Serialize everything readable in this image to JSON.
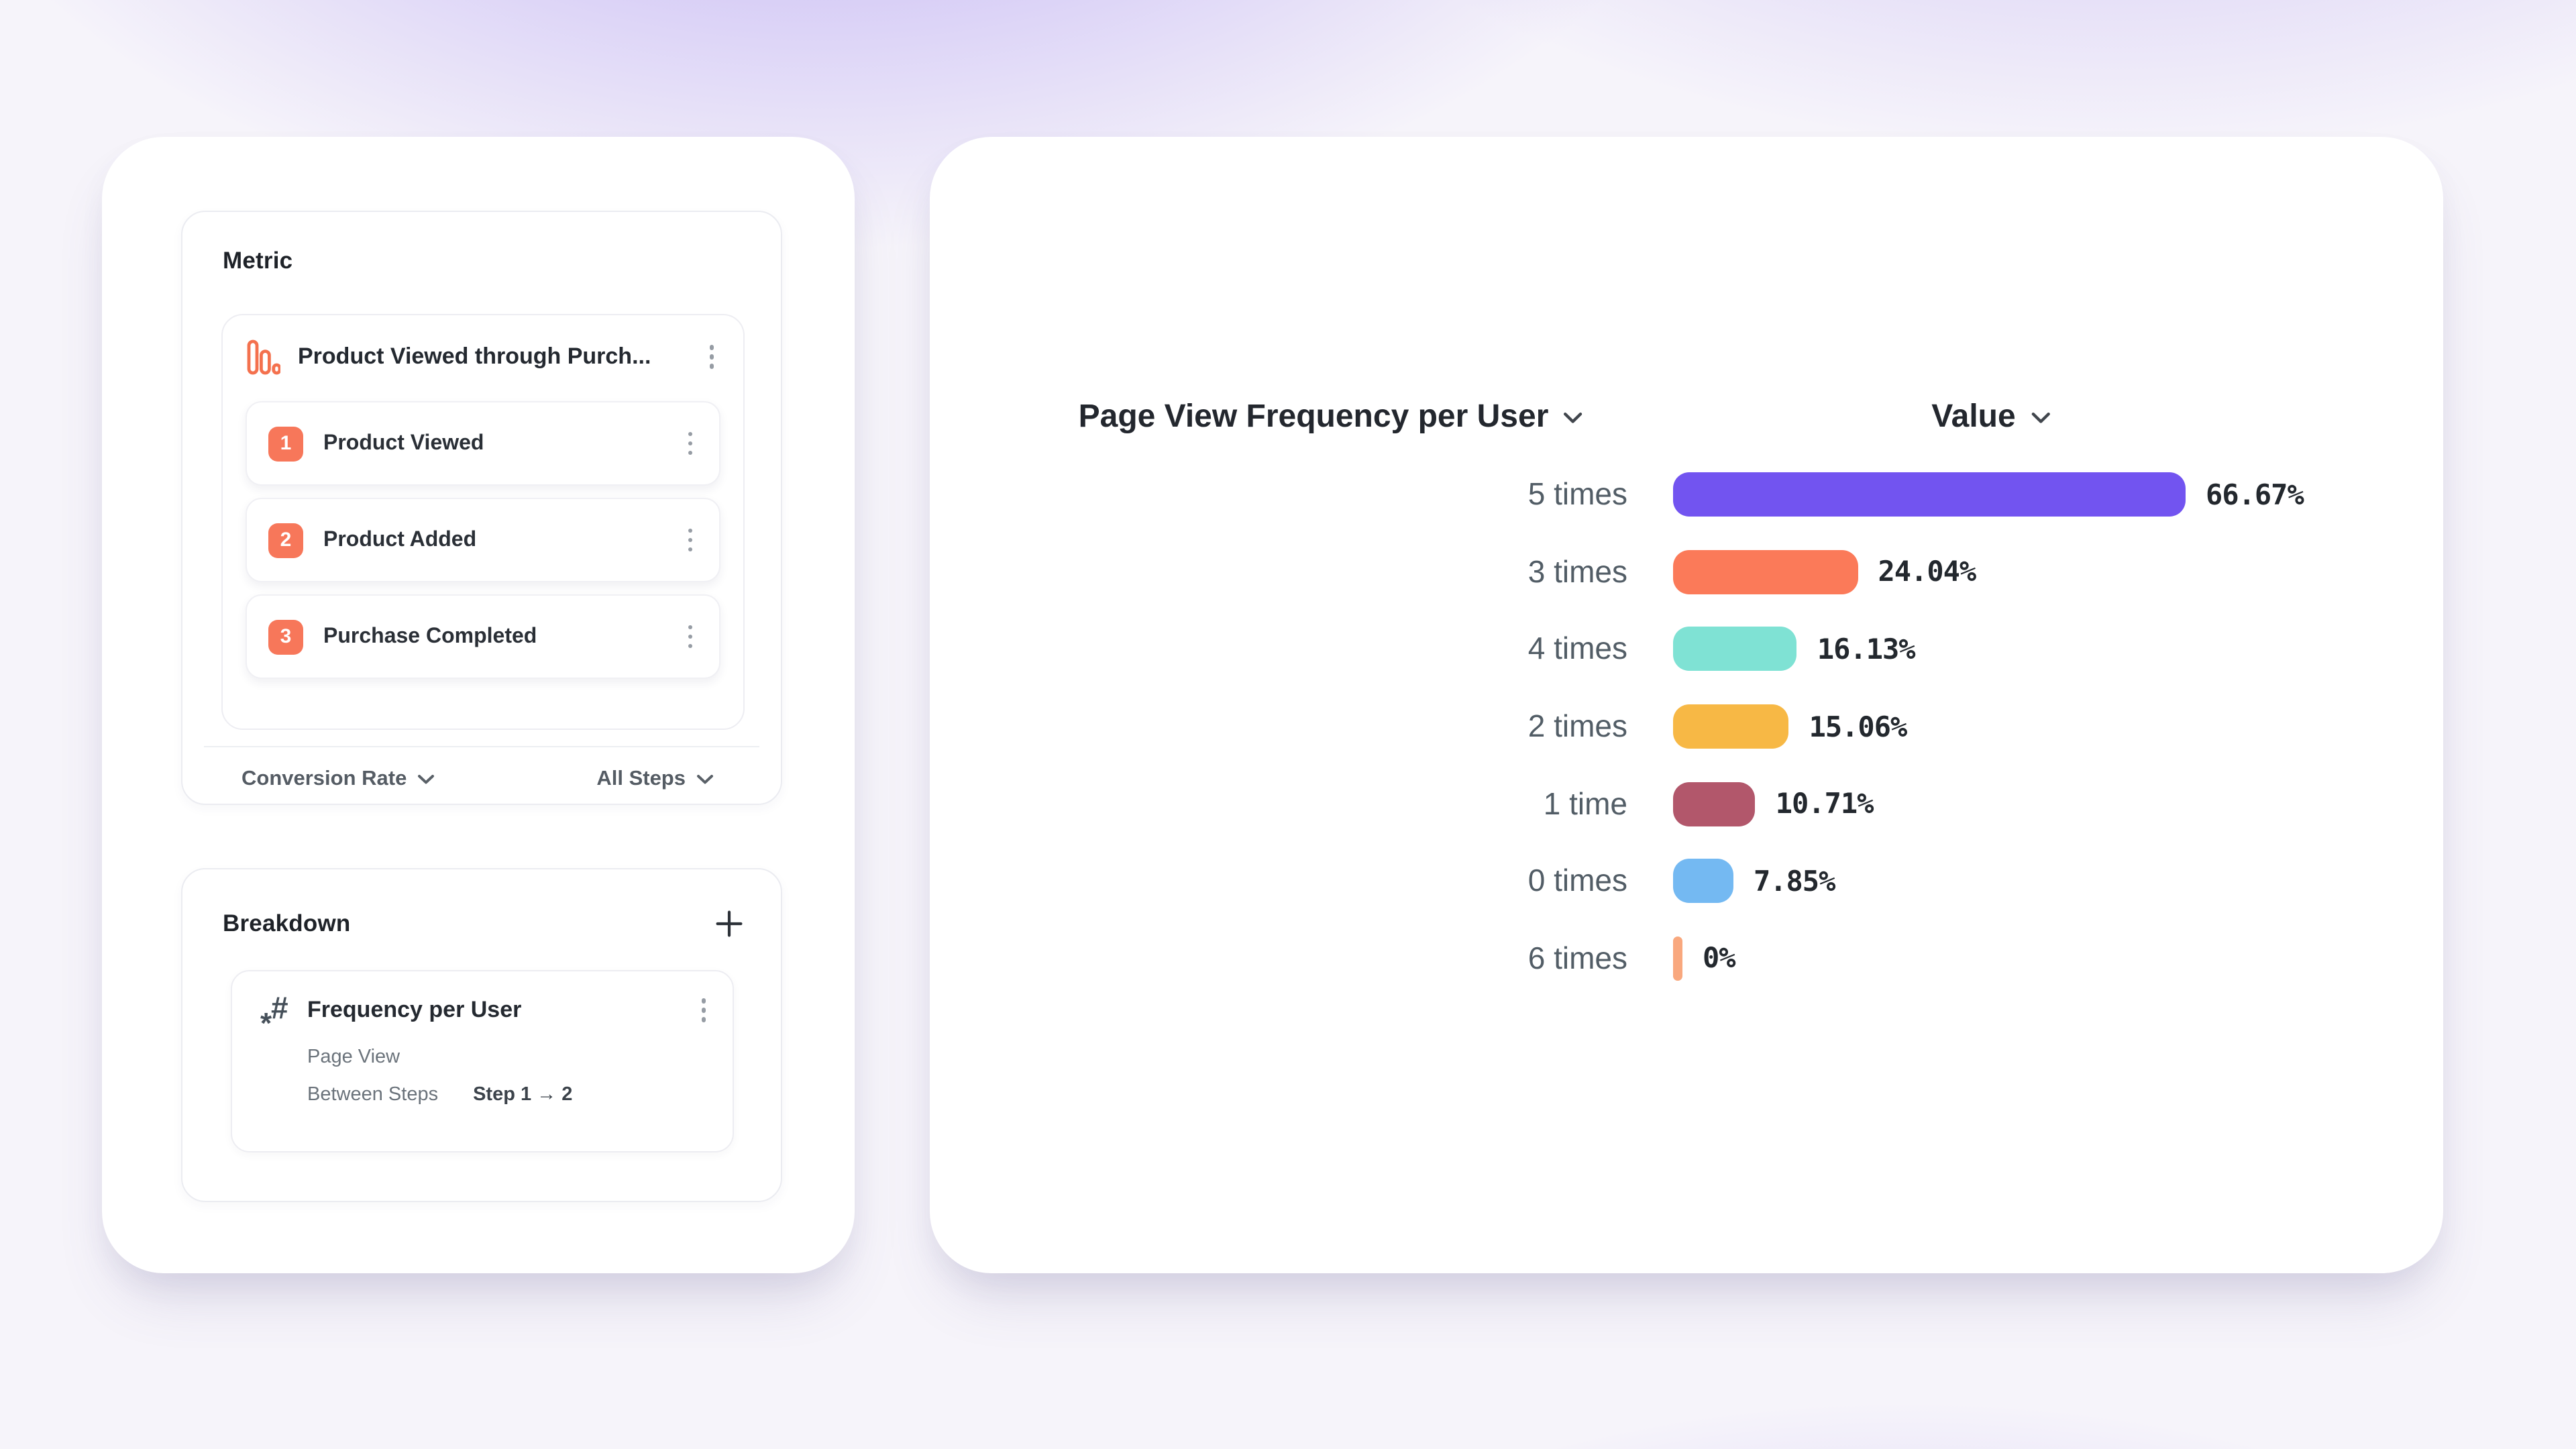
{
  "metric_panel": {
    "heading": "Metric",
    "funnel": {
      "title": "Product Viewed through Purch...",
      "icon": "bar-chart-icon",
      "steps": [
        {
          "number": "1",
          "label": "Product Viewed"
        },
        {
          "number": "2",
          "label": "Product Added"
        },
        {
          "number": "3",
          "label": "Purchase Completed"
        }
      ],
      "footer": {
        "measure_dropdown": "Conversion Rate",
        "steps_dropdown": "All Steps"
      }
    }
  },
  "breakdown_panel": {
    "heading": "Breakdown",
    "add_button": "plus-icon",
    "item": {
      "title": "Frequency per User",
      "icon": "hash-star-icon",
      "event": "Page View",
      "between_steps_label": "Between Steps",
      "step_range": "Step 1 → 2"
    }
  },
  "chart_data": {
    "type": "bar",
    "orientation": "horizontal",
    "title": "Page View Frequency per User",
    "value_header": "Value",
    "categories": [
      "5 times",
      "3 times",
      "4 times",
      "2 times",
      "1 time",
      "0 times",
      "6 times"
    ],
    "values": [
      66.67,
      24.04,
      16.13,
      15.06,
      10.71,
      7.85,
      0
    ],
    "value_labels": [
      "66.67%",
      "24.04%",
      "16.13%",
      "15.06%",
      "10.71%",
      "7.85%",
      "0%"
    ],
    "colors": [
      "#7254f0",
      "#fb7a59",
      "#7fe2d4",
      "#f7b845",
      "#b2576b",
      "#74b9f2",
      "#f9a87e"
    ],
    "unit": "%",
    "xlim": [
      0,
      100
    ],
    "grid": false,
    "legend": "none",
    "sort": "descending"
  },
  "colors": {
    "accent_orange": "#f7775a",
    "background_purple": "#7c5ceb",
    "card_white": "#ffffff",
    "text_dark": "#23272e",
    "text_gray": "#525d66"
  }
}
